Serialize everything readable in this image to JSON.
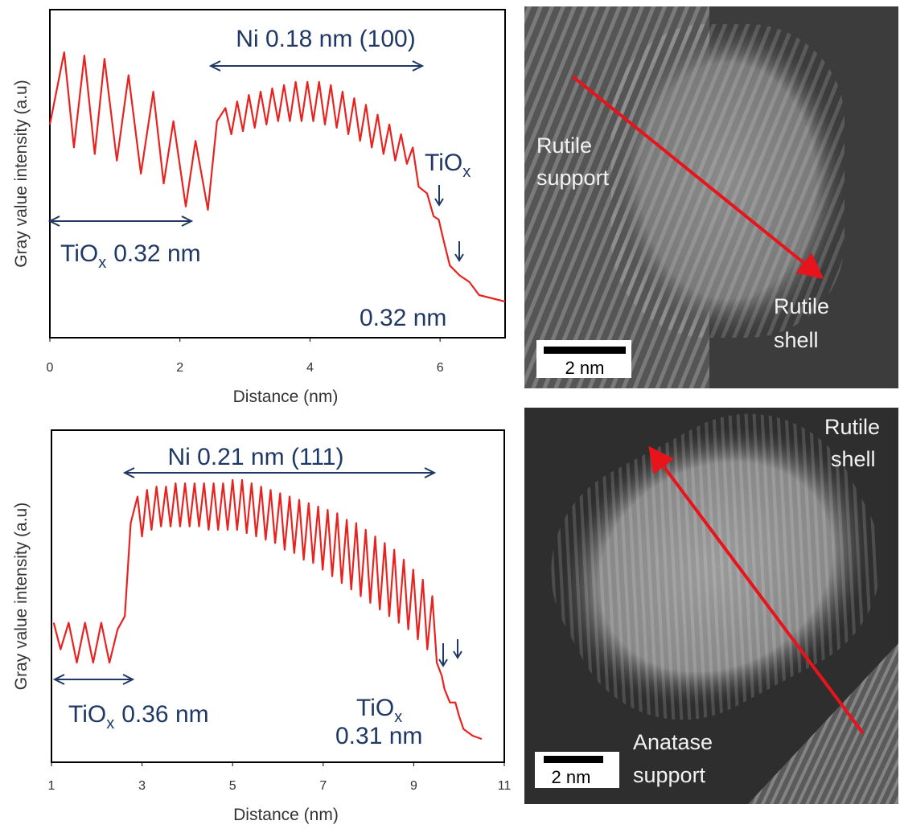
{
  "chart_data": [
    {
      "type": "line",
      "xlabel": "Distance (nm)",
      "ylabel": "Gray value intensity (a.u)",
      "color": "#e8231f",
      "xlim": [
        0,
        7
      ],
      "xticks": [
        0,
        2,
        4,
        6
      ],
      "ylim": [
        0,
        100
      ],
      "grid": false,
      "x": [
        0.0,
        0.22,
        0.37,
        0.53,
        0.69,
        0.84,
        1.03,
        1.21,
        1.4,
        1.59,
        1.75,
        1.9,
        2.09,
        2.24,
        2.43,
        2.57,
        2.7,
        2.79,
        2.88,
        2.97,
        3.06,
        3.15,
        3.24,
        3.33,
        3.42,
        3.51,
        3.6,
        3.69,
        3.78,
        3.87,
        3.96,
        4.05,
        4.14,
        4.23,
        4.32,
        4.41,
        4.5,
        4.59,
        4.68,
        4.77,
        4.86,
        4.95,
        5.04,
        5.13,
        5.22,
        5.31,
        5.4,
        5.49,
        5.58,
        5.67,
        5.8,
        5.9,
        5.98,
        6.05,
        6.15,
        6.3,
        6.45,
        6.6,
        6.8,
        7.0
      ],
      "values": [
        65,
        87,
        58,
        86,
        56,
        85,
        54,
        80,
        50,
        75,
        47,
        66,
        40,
        60,
        39,
        66,
        70,
        62,
        72,
        63,
        74,
        64,
        75,
        65,
        76,
        66,
        77,
        66,
        78,
        66,
        78,
        66,
        78,
        65,
        77,
        64,
        75,
        62,
        73,
        60,
        71,
        58,
        68,
        56,
        65,
        54,
        62,
        53,
        58,
        46,
        44,
        37,
        36,
        30,
        22,
        19,
        17,
        13,
        12,
        11
      ],
      "annotations": [
        {
          "text": "Ni 0.18 nm (100)"
        },
        {
          "base": "TiO",
          "sub": "x",
          "rest": "0.32 nm"
        },
        {
          "base": "TiO",
          "sub": "x"
        },
        {
          "text": "0.32 nm"
        }
      ]
    },
    {
      "type": "line",
      "xlabel": "Distance (nm)",
      "ylabel": "Gray value intensity (a.u)",
      "color": "#e8231f",
      "xlim": [
        1,
        11
      ],
      "xticks": [
        1,
        3,
        5,
        7,
        9,
        11
      ],
      "ylim": [
        0,
        100
      ],
      "grid": false,
      "x": [
        1.05,
        1.2,
        1.38,
        1.56,
        1.74,
        1.92,
        2.1,
        2.28,
        2.46,
        2.62,
        2.75,
        2.9,
        3.0,
        3.11,
        3.21,
        3.32,
        3.42,
        3.53,
        3.63,
        3.74,
        3.84,
        3.95,
        4.05,
        4.16,
        4.26,
        4.37,
        4.47,
        4.58,
        4.68,
        4.79,
        4.89,
        5.0,
        5.1,
        5.21,
        5.31,
        5.42,
        5.52,
        5.63,
        5.73,
        5.84,
        5.94,
        6.05,
        6.15,
        6.26,
        6.36,
        6.47,
        6.57,
        6.68,
        6.78,
        6.89,
        6.99,
        7.1,
        7.2,
        7.31,
        7.41,
        7.52,
        7.62,
        7.73,
        7.83,
        7.94,
        8.04,
        8.15,
        8.25,
        8.36,
        8.46,
        8.57,
        8.67,
        8.78,
        8.88,
        8.99,
        9.09,
        9.2,
        9.3,
        9.41,
        9.51,
        9.62,
        9.68,
        9.8,
        9.92,
        10.0,
        10.1,
        10.3,
        10.5
      ],
      "values": [
        42,
        34,
        42,
        30,
        42,
        30,
        42,
        30,
        40,
        44,
        72,
        80,
        68,
        82,
        70,
        83,
        71,
        83,
        71,
        84,
        71,
        84,
        71,
        84,
        71,
        84,
        70,
        84,
        70,
        84,
        70,
        85,
        70,
        85,
        69,
        84,
        68,
        83,
        67,
        82,
        66,
        81,
        64,
        80,
        63,
        79,
        61,
        78,
        60,
        77,
        58,
        76,
        56,
        75,
        54,
        73,
        52,
        72,
        50,
        70,
        48,
        68,
        46,
        66,
        44,
        64,
        42,
        61,
        40,
        58,
        37,
        55,
        34,
        50,
        30,
        26,
        22,
        18,
        18,
        14,
        10,
        8,
        7
      ],
      "annotations": [
        {
          "text": "Ni 0.21 nm (111)"
        },
        {
          "base": "TiO",
          "sub": "x",
          "rest": "0.36 nm"
        },
        {
          "base": "TiO",
          "sub": "x"
        },
        {
          "text": "0.31 nm"
        }
      ]
    }
  ],
  "images": [
    {
      "labels": [
        {
          "lines": [
            "Rutile",
            "support"
          ]
        },
        {
          "lines": [
            "Rutile",
            "shell"
          ]
        }
      ],
      "scale_bar": "2 nm"
    },
    {
      "labels": [
        {
          "lines": [
            "Rutile",
            "shell"
          ]
        },
        {
          "lines": [
            "Anatase",
            "support"
          ]
        }
      ],
      "scale_bar": "2 nm"
    }
  ]
}
